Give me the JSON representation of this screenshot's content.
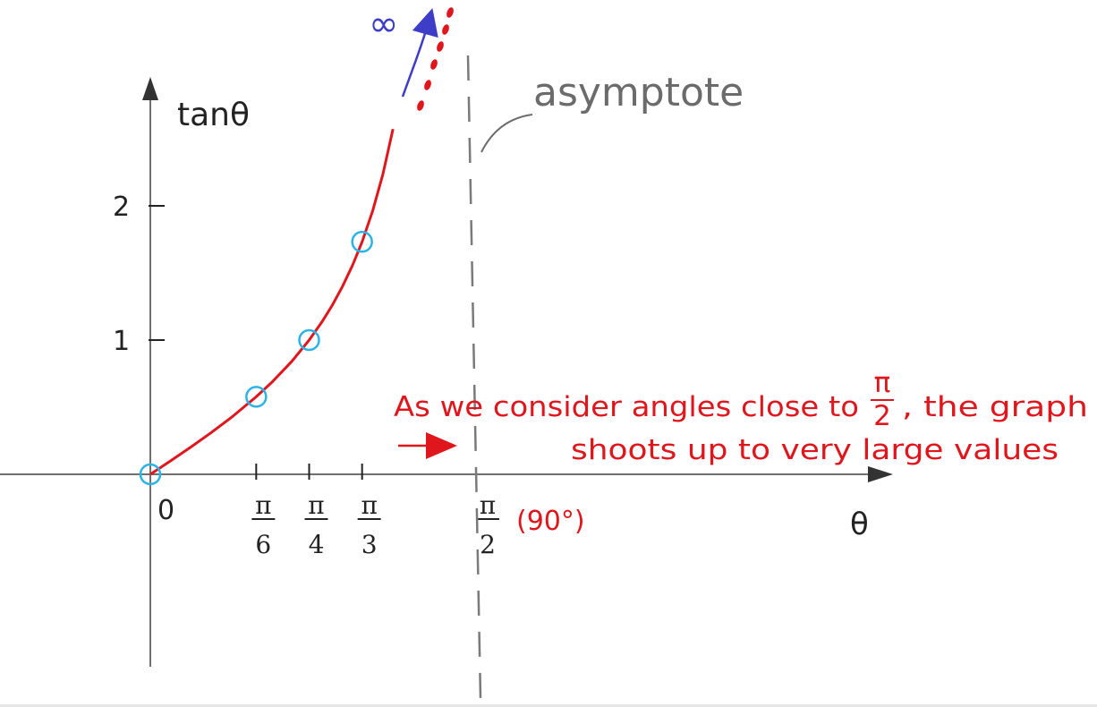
{
  "colors": {
    "axis": "#6f6f6f",
    "ink": "#222222",
    "curve": "#e0161d",
    "circle": "#2bb3e6",
    "asymptote": "#7a7a7a",
    "infinity": "#3d3dc8"
  },
  "chart_data": {
    "type": "line",
    "title": "",
    "xlabel": "θ",
    "ylabel": "tanθ",
    "xlim": [
      0,
      1.9
    ],
    "ylim": [
      0,
      2.6
    ],
    "y_ticks": [
      {
        "value": 1,
        "label": "1"
      },
      {
        "value": 2,
        "label": "2"
      }
    ],
    "x_ticks": [
      {
        "value": 0,
        "num": "0",
        "den": ""
      },
      {
        "value": 0.5236,
        "num": "π",
        "den": "6"
      },
      {
        "value": 0.7854,
        "num": "π",
        "den": "4"
      },
      {
        "value": 1.0472,
        "num": "π",
        "den": "3"
      },
      {
        "value": 1.5708,
        "num": "π",
        "den": "2"
      }
    ],
    "x_extra_label": "(90°)",
    "series": [
      {
        "x": [
          0,
          0.1,
          0.2,
          0.3,
          0.4,
          0.5236,
          0.6,
          0.7,
          0.7854,
          0.85,
          0.9,
          0.95,
          1.0,
          1.0472,
          1.1,
          1.15,
          1.2,
          1.25
        ],
        "y": [
          0,
          0.1003,
          0.2027,
          0.3093,
          0.4228,
          0.5774,
          0.6841,
          0.8423,
          1.0,
          1.1383,
          1.2602,
          1.3984,
          1.5574,
          1.7321,
          1.9648,
          2.2345,
          2.5722,
          3.0096
        ]
      }
    ],
    "marked_points": [
      {
        "x": 0,
        "y": 0
      },
      {
        "x": 0.5236,
        "y": 0.5774
      },
      {
        "x": 0.7854,
        "y": 1.0
      },
      {
        "x": 1.0472,
        "y": 1.7321
      }
    ],
    "asymptote_x": 1.5708,
    "annotations": {
      "asymptote": "asymptote",
      "infinity": "∞",
      "line1_pre": "As we consider angles close to",
      "line1_frac_num": "π",
      "line1_frac_den": "2",
      "line1_post": ", the graph",
      "line2": "shoots up to very large values"
    }
  }
}
